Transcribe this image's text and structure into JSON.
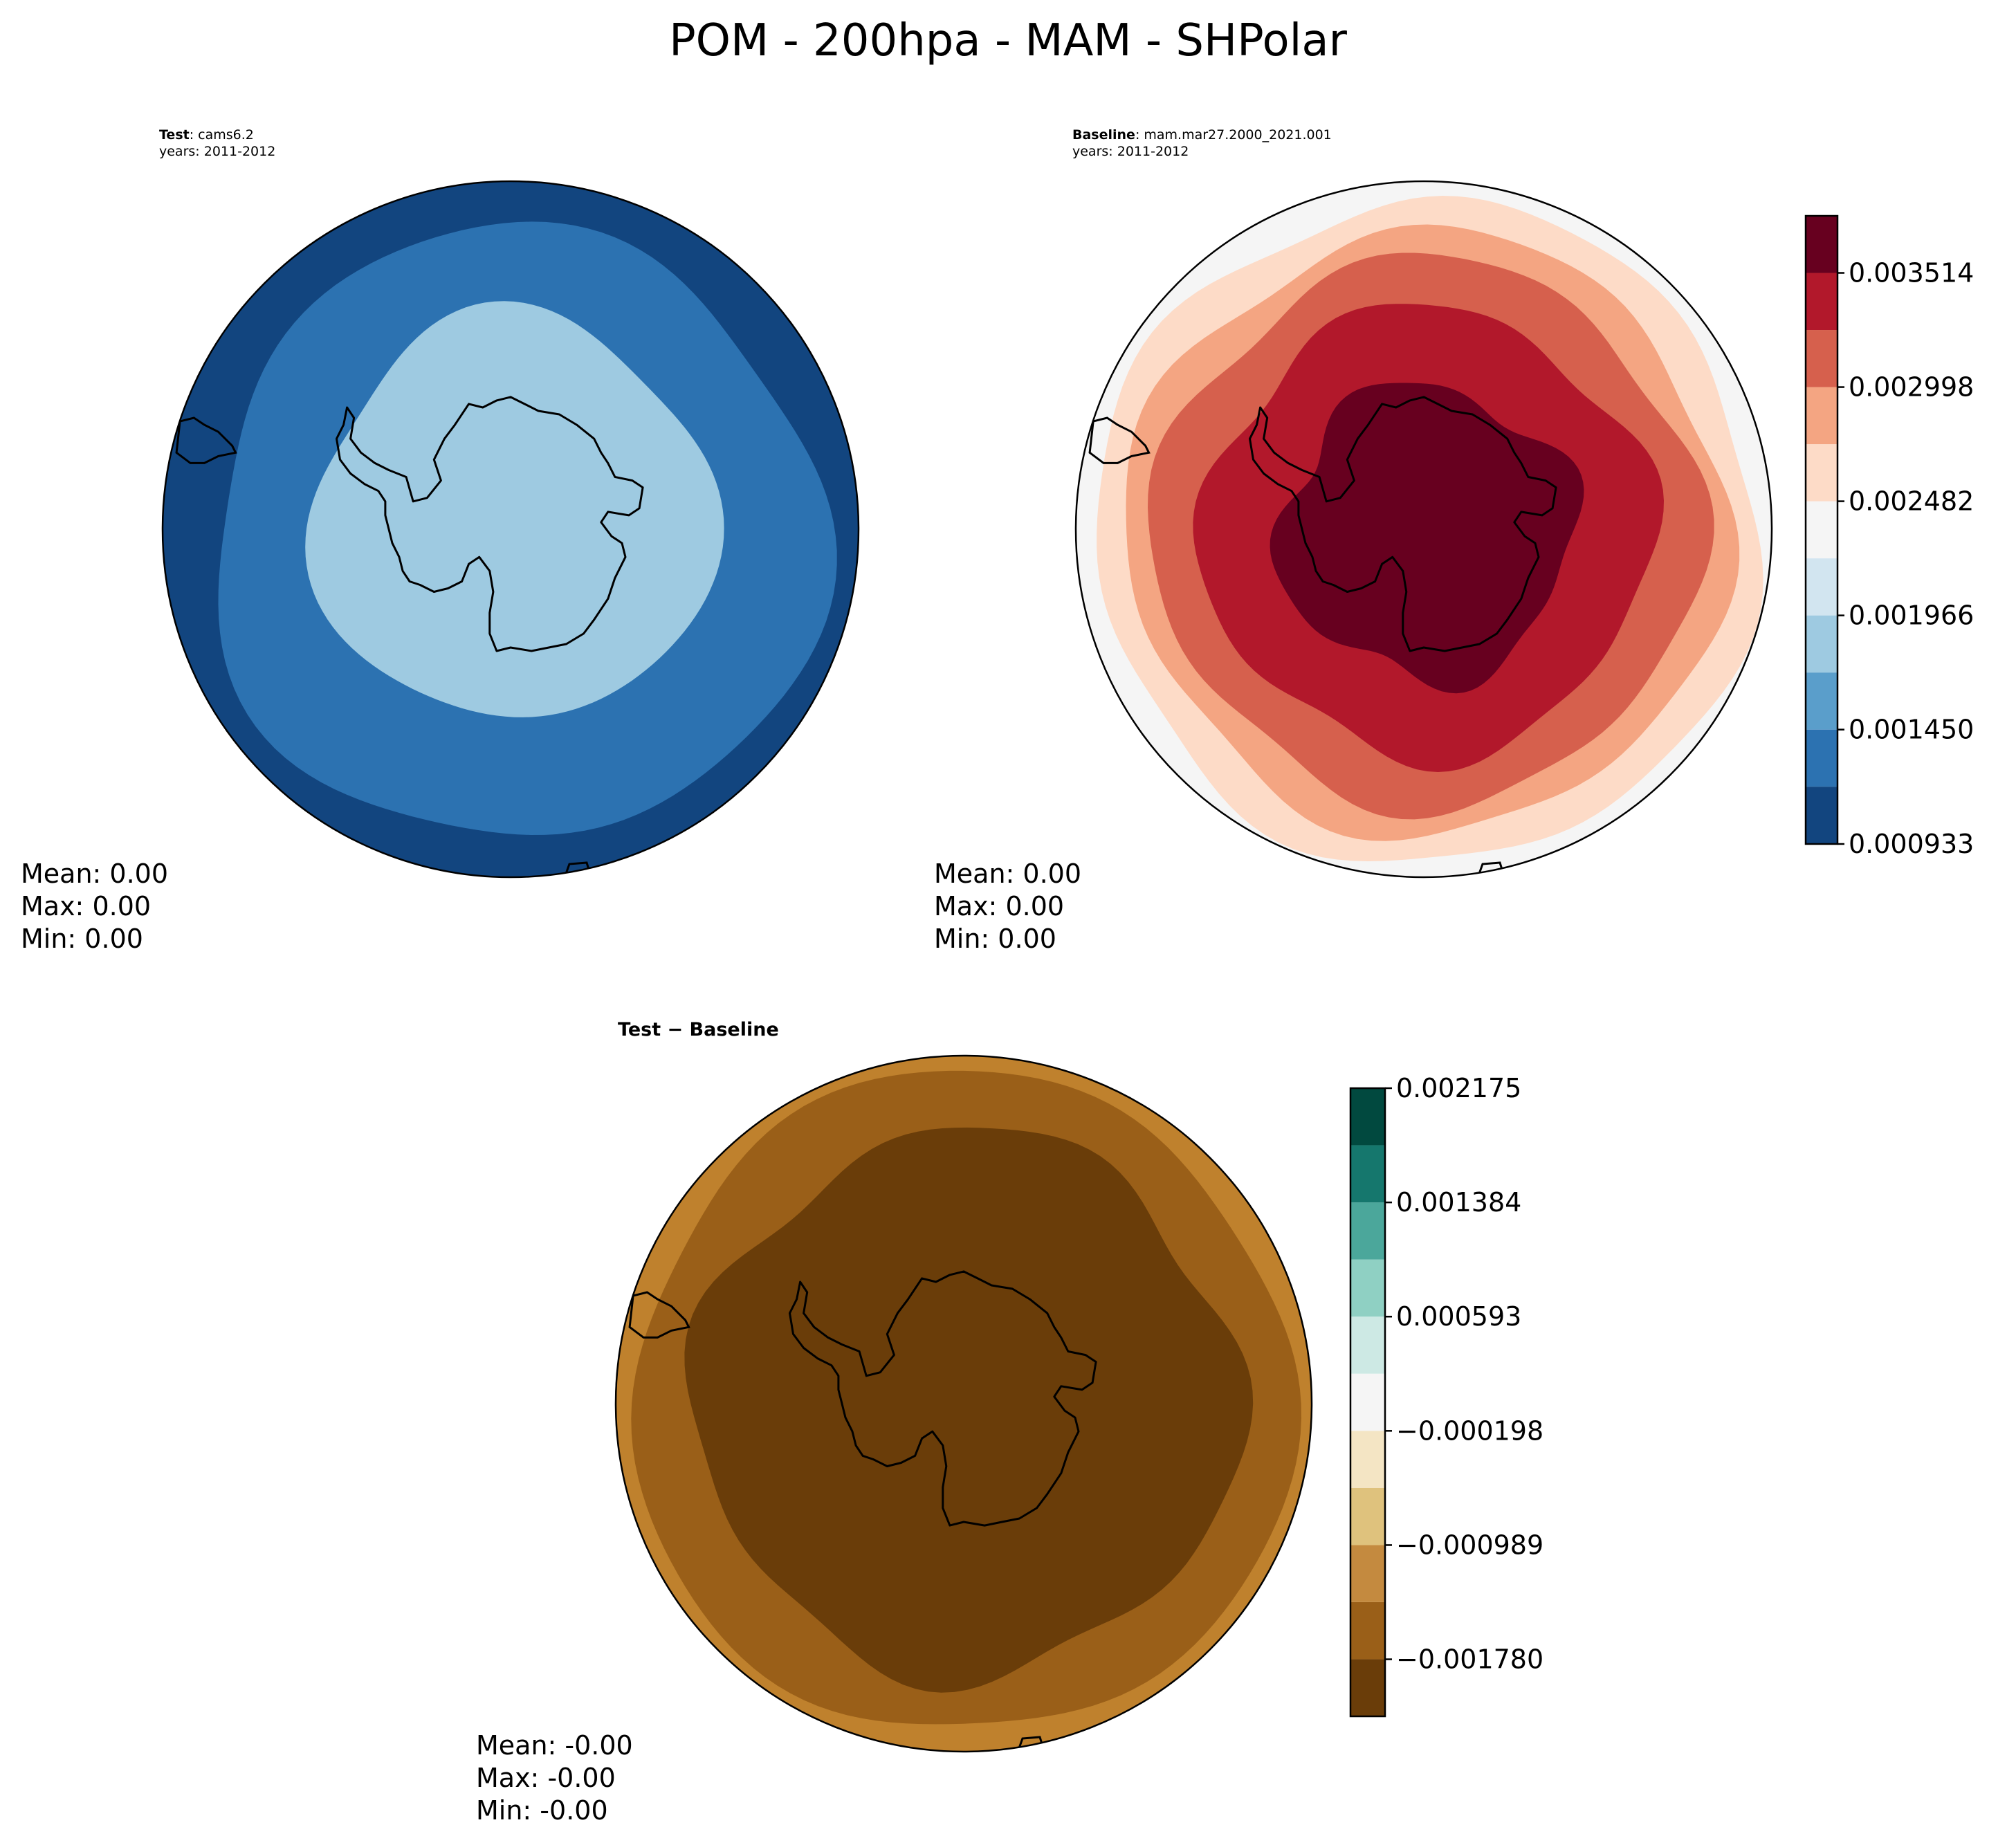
{
  "chart_data": {
    "type": "polar-contour-map",
    "title": "POM - 200hpa - MAM - SHPolar",
    "panels": [
      {
        "id": "test",
        "label_bold": "Test",
        "label_rest": ": cams6.2",
        "years": "years: 2011-2012",
        "stats": {
          "mean": "Mean:  0.00",
          "max": "Max:  0.00",
          "min": "Min:  0.00"
        },
        "band_colors": [
          "#9ecae1",
          "#2c72b1",
          "#12457f"
        ]
      },
      {
        "id": "baseline",
        "label_bold": "Baseline",
        "label_rest": ": mam.mar27.2000_2021.001",
        "years": "years: 2011-2012",
        "stats": {
          "mean": "Mean:  0.00",
          "max": "Max:  0.00",
          "min": "Min:  0.00"
        },
        "band_colors": [
          "#f5f5f5",
          "#fddbc7",
          "#f4a582",
          "#d6604d",
          "#b2182b",
          "#67001f"
        ]
      },
      {
        "id": "diff",
        "label_bold": "Test − Baseline",
        "stats": {
          "mean": "Mean: -0.00",
          "max": "Max: -0.00",
          "min": "Min: -0.00"
        },
        "band_colors": [
          "#bf812d",
          "#9a5f18",
          "#6a3d09"
        ]
      }
    ],
    "colorbars": [
      {
        "id": "main",
        "levels": [
          0.000933,
          0.001192,
          0.00145,
          0.001708,
          0.001966,
          0.002224,
          0.002482,
          0.00274,
          0.002998,
          0.003256,
          0.003514,
          0.003772
        ],
        "colors": [
          "#12457f",
          "#2c72b1",
          "#5a9ecb",
          "#9ecae1",
          "#d2e5f0",
          "#f5f5f5",
          "#fddbc7",
          "#f4a582",
          "#d6604d",
          "#b2182b",
          "#67001f"
        ],
        "tick_values": [
          0.000933,
          0.00145,
          0.001966,
          0.002482,
          0.002998,
          0.003514
        ],
        "tick_labels": [
          "0.000933",
          "0.001450",
          "0.001966",
          "0.002482",
          "0.002998",
          "0.003514"
        ]
      },
      {
        "id": "diff",
        "levels": [
          -0.002175,
          -0.00178,
          -0.001384,
          -0.000989,
          -0.000593,
          -0.000198,
          0.000198,
          0.000593,
          0.000989,
          0.001384,
          0.00178,
          0.002175
        ],
        "colors": [
          "#6a3d09",
          "#9a5f18",
          "#c48a3f",
          "#dfc27d",
          "#f4e5c4",
          "#f5f5f5",
          "#cde9e4",
          "#8fd0c3",
          "#4ba79b",
          "#15776d",
          "#01493f"
        ],
        "tick_values": [
          -0.00178,
          -0.000989,
          -0.000198,
          0.000593,
          0.001384,
          0.002175
        ],
        "tick_labels": [
          "−0.001780",
          "−0.000989",
          "−0.000198",
          "0.000593",
          "0.001384",
          "0.002175"
        ]
      }
    ]
  }
}
